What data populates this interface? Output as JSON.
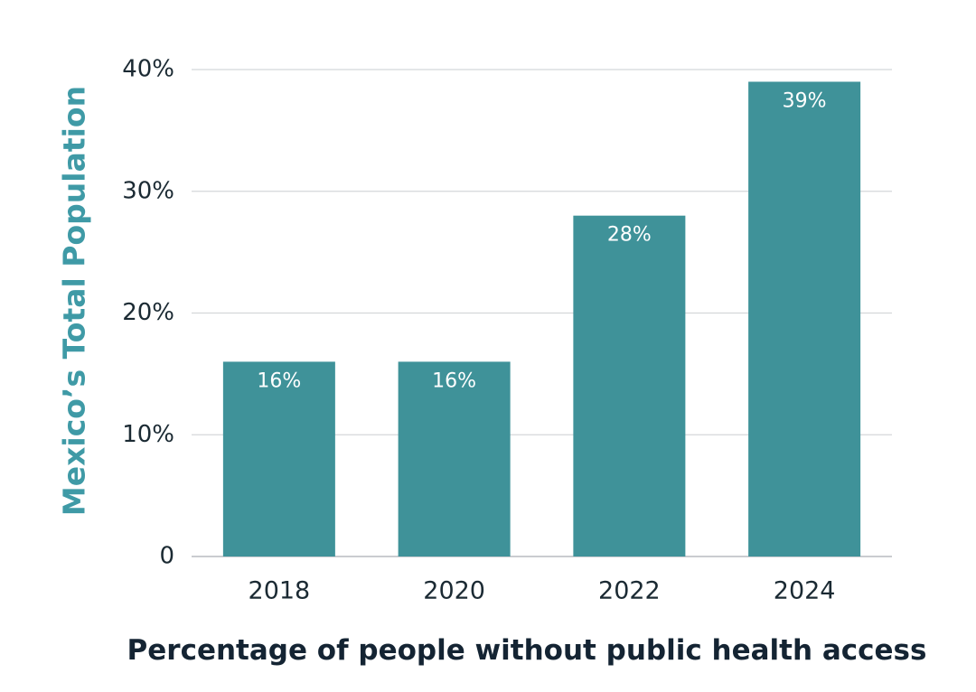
{
  "chart_data": {
    "type": "bar",
    "title": "",
    "xlabel": "Percentage of people without public health access",
    "ylabel": "Mexico’s Total Population",
    "categories": [
      "2018",
      "2020",
      "2022",
      "2024"
    ],
    "values": [
      16,
      16,
      28,
      39
    ],
    "data_labels": [
      "16%",
      "16%",
      "28%",
      "39%"
    ],
    "ylim": [
      0,
      40
    ],
    "yticks": [
      0,
      10,
      20,
      30,
      40
    ],
    "ytick_labels": [
      "0",
      "10%",
      "20%",
      "30%",
      "40%"
    ],
    "grid": true,
    "legend": "none",
    "bar_color": "#3f9299"
  }
}
